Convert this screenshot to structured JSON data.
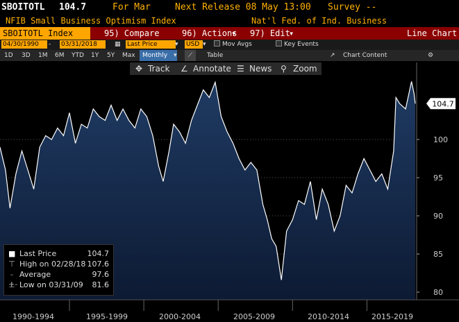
{
  "header": {
    "ticker": "SBOITOTL",
    "last_value": "104.7",
    "period": "For Mar",
    "next_release": "Next Release 08 May 13:00",
    "survey": "Survey --",
    "description": "NFIB Small Business Optimism Index",
    "source": "Nat'l Fed. of Ind. Business"
  },
  "toolbar": {
    "security": "SBOITOTL Index",
    "compare": "95) Compare",
    "actions": "96) Actions",
    "edit": "97) Edit",
    "chart_type": "Line Chart"
  },
  "controls": {
    "start_date": "04/30/1990",
    "end_date": "03/31/2018",
    "field": "Last Price",
    "currency": "USD",
    "mov_avgs": "Mov Avgs",
    "key_events": "Key Events",
    "table": "Table",
    "chart_content": "Chart Content",
    "periods": [
      "1D",
      "3D",
      "1M",
      "6M",
      "YTD",
      "1Y",
      "5Y",
      "Max"
    ],
    "frequency": "Monthly"
  },
  "tools": {
    "track": "Track",
    "annotate": "Annotate",
    "news": "News",
    "zoom": "Zoom"
  },
  "legend": {
    "last_label": "Last Price",
    "last_value": "104.7",
    "high_label": "High on 02/28/18",
    "high_value": "107.6",
    "avg_label": "Average",
    "avg_value": "97.6",
    "low_label": "Low on 03/31/09",
    "low_value": "81.6"
  },
  "colors": {
    "header_amber": "#ffb000",
    "toolbar_red": "#8b0000",
    "orange": "#ffa500",
    "area_top": "#1f3b63",
    "area_bottom": "#0d1a33"
  },
  "chart_data": {
    "type": "area",
    "x_range": [
      1990.33,
      2018.25
    ],
    "ylim": [
      79,
      109
    ],
    "yticks": [
      80,
      85,
      90,
      95,
      100
    ],
    "current_label": "104.7",
    "x_periods": [
      "1990-1994",
      "1995-1999",
      "2000-2004",
      "2005-2009",
      "2010-2014",
      "2015-2019"
    ],
    "series": [
      {
        "x": [
          1990.33,
          1990.7,
          1991.0,
          1991.4,
          1991.8,
          1992.2,
          1992.6,
          1993.0,
          1993.4,
          1993.8,
          1994.2,
          1994.6,
          1995.0,
          1995.4,
          1995.8,
          1996.2,
          1996.6,
          1997.0,
          1997.4,
          1997.8,
          1998.2,
          1998.6,
          1999.0,
          1999.4,
          1999.8,
          2000.2,
          2000.6,
          2001.0,
          2001.3,
          2001.7,
          2002.0,
          2002.4,
          2002.8,
          2003.2,
          2003.6,
          2004.0,
          2004.4,
          2004.8,
          2005.2,
          2005.6,
          2006.0,
          2006.4,
          2006.8,
          2007.2,
          2007.6,
          2008.0,
          2008.3,
          2008.6,
          2008.9,
          2009.25,
          2009.6,
          2010.0,
          2010.4,
          2010.8,
          2011.2,
          2011.6,
          2012.0,
          2012.4,
          2012.8,
          2013.2,
          2013.6,
          2014.0,
          2014.4,
          2014.8,
          2015.2,
          2015.6,
          2016.0,
          2016.4,
          2016.8,
          2016.95,
          2017.2,
          2017.6,
          2018.0,
          2018.17,
          2018.25
        ],
        "values": [
          99.0,
          96.0,
          91.0,
          95.5,
          98.5,
          96.0,
          93.5,
          99.0,
          100.5,
          100.0,
          101.5,
          100.5,
          103.5,
          99.5,
          102.0,
          101.5,
          104.0,
          103.0,
          102.5,
          104.5,
          102.5,
          104.0,
          102.5,
          101.5,
          104.0,
          103.0,
          100.5,
          96.5,
          94.5,
          98.5,
          102.0,
          101.0,
          99.5,
          102.5,
          104.5,
          106.5,
          105.5,
          107.5,
          103.0,
          101.0,
          99.5,
          97.5,
          96.0,
          97.0,
          96.0,
          91.5,
          89.5,
          87.0,
          86.0,
          81.6,
          88.0,
          89.5,
          92.0,
          91.5,
          94.5,
          89.5,
          93.5,
          91.5,
          88.0,
          90.0,
          94.0,
          93.0,
          95.5,
          97.5,
          96.0,
          94.5,
          95.5,
          93.5,
          98.5,
          105.5,
          104.7,
          104.0,
          107.6,
          106.0,
          104.7
        ]
      }
    ]
  }
}
